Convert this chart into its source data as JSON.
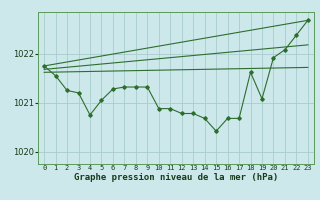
{
  "background_color": "#cce8eb",
  "grid_color": "#aacccc",
  "line_color": "#2d6e2d",
  "title": "Graphe pression niveau de la mer (hPa)",
  "xlim": [
    -0.5,
    23.5
  ],
  "ylim": [
    1019.75,
    1022.85
  ],
  "yticks": [
    1020,
    1021,
    1022
  ],
  "xtick_labels": [
    "0",
    "1",
    "2",
    "3",
    "4",
    "5",
    "6",
    "7",
    "8",
    "9",
    "10",
    "11",
    "12",
    "13",
    "14",
    "15",
    "16",
    "17",
    "18",
    "19",
    "20",
    "21",
    "22",
    "23"
  ],
  "series_main": {
    "x": [
      0,
      1,
      2,
      3,
      4,
      5,
      6,
      7,
      8,
      9,
      10,
      11,
      12,
      13,
      14,
      15,
      16,
      17,
      18,
      19,
      20,
      21,
      22,
      23
    ],
    "y": [
      1021.75,
      1021.55,
      1021.25,
      1021.2,
      1020.75,
      1021.05,
      1021.28,
      1021.32,
      1021.32,
      1021.32,
      1020.88,
      1020.88,
      1020.78,
      1020.78,
      1020.68,
      1020.42,
      1020.68,
      1020.68,
      1021.62,
      1021.08,
      1021.92,
      1022.08,
      1022.38,
      1022.68
    ]
  },
  "series_flat": {
    "x": [
      0,
      23
    ],
    "y": [
      1021.62,
      1021.72
    ]
  },
  "series_steep": {
    "x": [
      0,
      23
    ],
    "y": [
      1021.75,
      1022.68
    ]
  },
  "series_mid": {
    "x": [
      0,
      23
    ],
    "y": [
      1021.68,
      1022.18
    ]
  }
}
